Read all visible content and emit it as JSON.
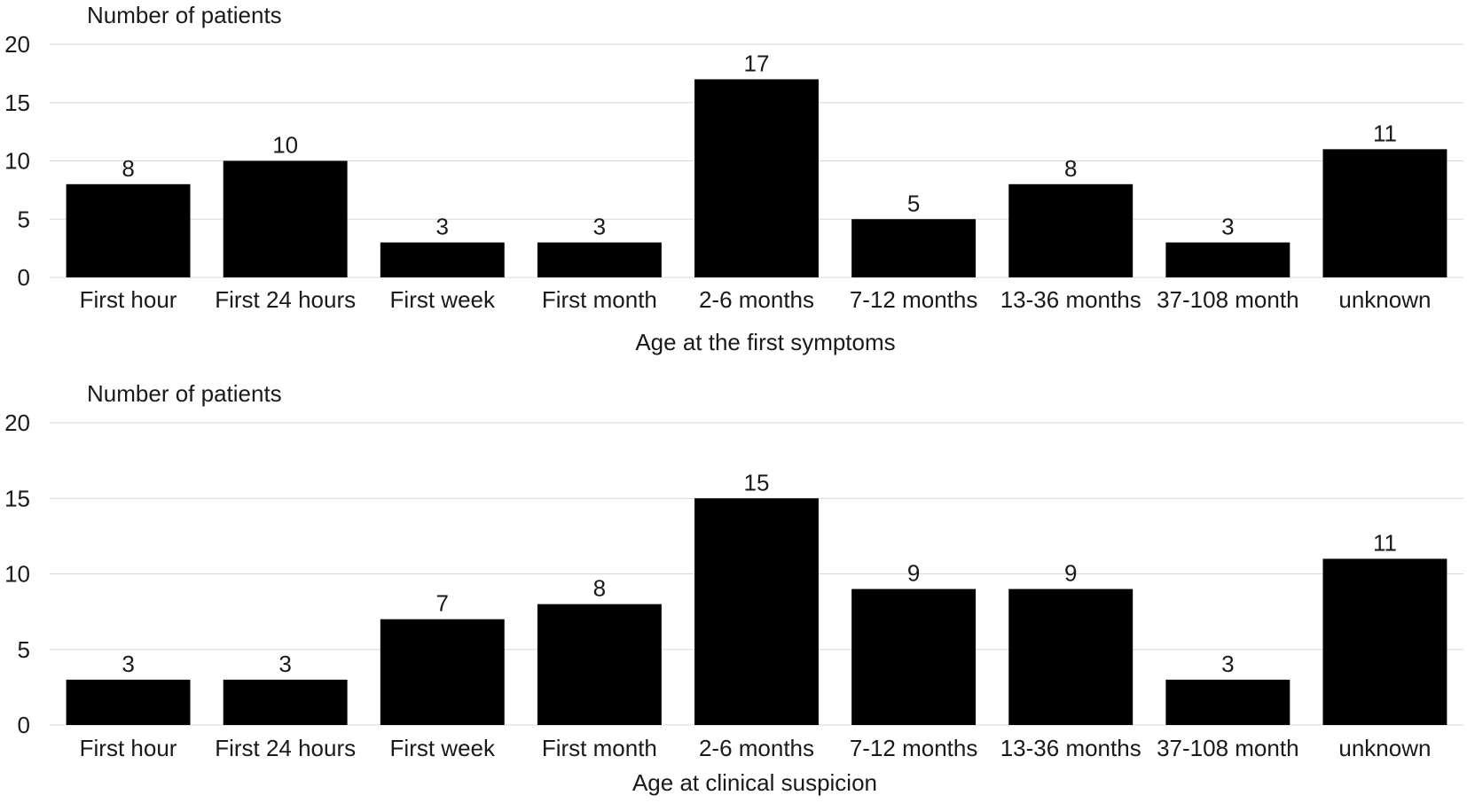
{
  "chart_data": [
    {
      "type": "bar",
      "ylabel": "Number of patients",
      "xlabel": "Age at the first symptoms",
      "categories": [
        "First hour",
        "First 24 hours",
        "First week",
        "First month",
        "2-6 months",
        "7-12 months",
        "13-36 months",
        "37-108 month",
        "unknown"
      ],
      "values": [
        8,
        10,
        3,
        3,
        17,
        5,
        8,
        3,
        11
      ],
      "ylim": [
        0,
        20
      ],
      "yticks": [
        0,
        5,
        10,
        15,
        20
      ],
      "grid": true,
      "bar_color": "#000000"
    },
    {
      "type": "bar",
      "ylabel": "Number of patients",
      "xlabel": "Age at clinical suspicion",
      "categories": [
        "First hour",
        "First 24 hours",
        "First week",
        "First month",
        "2-6 months",
        "7-12 months",
        "13-36 months",
        "37-108 month",
        "unknown"
      ],
      "values": [
        3,
        3,
        7,
        8,
        15,
        9,
        9,
        3,
        11
      ],
      "ylim": [
        0,
        20
      ],
      "yticks": [
        0,
        5,
        10,
        15,
        20
      ],
      "grid": true,
      "bar_color": "#000000"
    }
  ]
}
